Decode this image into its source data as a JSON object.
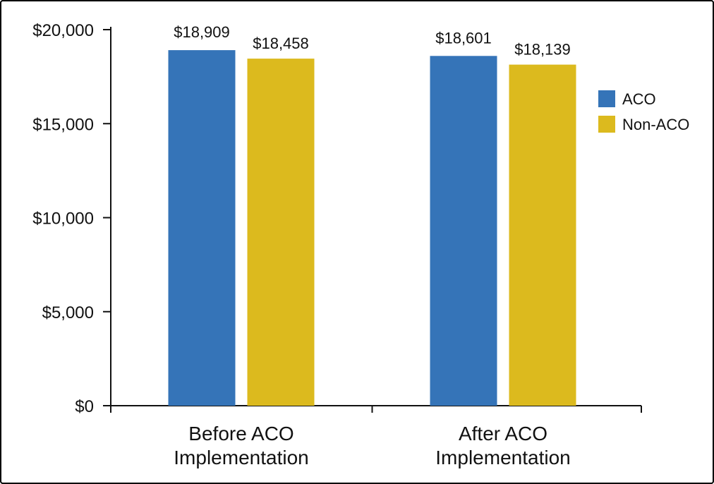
{
  "colors": {
    "ACO": "#3574b8",
    "Non-ACO": "#dcba1e",
    "axis": "#111111"
  },
  "chart_data": {
    "type": "bar",
    "title": "",
    "xlabel": "",
    "ylabel": "",
    "categories": [
      [
        "Before ACO",
        "Implementation"
      ],
      [
        "After ACO",
        "Implementation"
      ]
    ],
    "series": [
      {
        "name": "ACO",
        "values": [
          18909,
          18601
        ],
        "labels": [
          "$18,909",
          "$18,601"
        ]
      },
      {
        "name": "Non-ACO",
        "values": [
          18458,
          18139
        ],
        "labels": [
          "$18,458",
          "$18,139"
        ]
      }
    ],
    "ylim": [
      0,
      20000
    ],
    "yticks": [
      0,
      5000,
      10000,
      15000,
      20000
    ],
    "ytick_labels": [
      "$0",
      "$5,000",
      "$10,000",
      "$15,000",
      "$20,000"
    ],
    "grid": false,
    "legend": [
      "ACO",
      "Non-ACO"
    ],
    "legend_position": "right"
  }
}
